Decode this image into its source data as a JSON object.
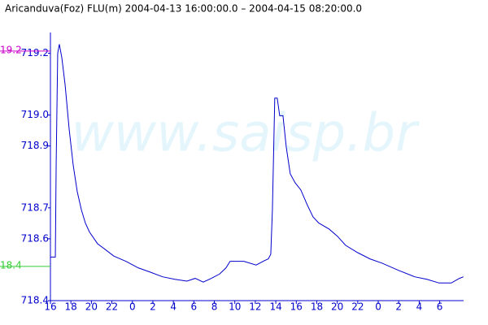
{
  "chart_data": {
    "type": "line",
    "title": "Aricanduva(Foz) FLU(m) 2004-04-13 16:00:00.0 – 2004-04-15 08:20:00.0",
    "watermark": "www.saisp.br",
    "xlim": [
      0,
      40.333
    ],
    "xticks": [
      {
        "value": 0,
        "label": "16"
      },
      {
        "value": 2,
        "label": "18"
      },
      {
        "value": 4,
        "label": "20"
      },
      {
        "value": 6,
        "label": "22"
      },
      {
        "value": 8,
        "label": "0"
      },
      {
        "value": 10,
        "label": "2"
      },
      {
        "value": 12,
        "label": "4"
      },
      {
        "value": 14,
        "label": "6"
      },
      {
        "value": 16,
        "label": "8"
      },
      {
        "value": 18,
        "label": "10"
      },
      {
        "value": 20,
        "label": "12"
      },
      {
        "value": 22,
        "label": "14"
      },
      {
        "value": 24,
        "label": "16"
      },
      {
        "value": 26,
        "label": "18"
      },
      {
        "value": 28,
        "label": "20"
      },
      {
        "value": 30,
        "label": "22"
      },
      {
        "value": 32,
        "label": "0"
      },
      {
        "value": 34,
        "label": "2"
      },
      {
        "value": 36,
        "label": "4"
      },
      {
        "value": 38,
        "label": "6"
      }
    ],
    "ylim": [
      718.4,
      719.267
    ],
    "yticks": [
      719.2,
      {
        "value": 719.0,
        "label": "719.0"
      },
      718.9,
      718.7,
      718.6,
      718.4
    ],
    "y2lim": [
      18.273,
      19.269
    ],
    "y2ticks": [
      19.2,
      18.4
    ],
    "y2tick_colors": [
      "#cc00cc",
      "#33cc33"
    ],
    "series": [
      {
        "color": "#0000cc",
        "x": [
          0,
          0.48,
          0.56,
          0.71,
          0.87,
          1.11,
          1.43,
          1.83,
          2.22,
          2.62,
          3.02,
          3.41,
          3.81,
          4.6,
          5.4,
          6.19,
          7.38,
          8.57,
          9.76,
          10.95,
          12.14,
          13.33,
          14.13,
          14.92,
          15.71,
          16.51,
          17.14,
          17.54,
          18.89,
          20.08,
          20.87,
          21.27,
          21.51,
          21.67,
          21.9,
          22.14,
          22.38,
          22.7,
          23.02,
          23.41,
          23.89,
          24.44,
          25.08,
          25.63,
          26.19,
          27.22,
          28.02,
          28.81,
          30.0,
          31.19,
          32.38,
          33.97,
          35.56,
          36.75,
          37.94,
          39.13,
          39.92,
          40.32
        ],
        "values": [
          718.541,
          718.541,
          718.839,
          719.2,
          719.229,
          719.186,
          719.099,
          718.954,
          718.839,
          718.752,
          718.694,
          718.651,
          718.622,
          718.584,
          718.564,
          718.544,
          718.527,
          718.506,
          718.492,
          718.477,
          718.469,
          718.463,
          718.472,
          718.46,
          718.472,
          718.486,
          718.506,
          718.527,
          718.527,
          718.515,
          718.529,
          718.535,
          718.55,
          718.694,
          719.055,
          719.055,
          718.998,
          718.998,
          718.897,
          718.81,
          718.781,
          718.758,
          718.709,
          718.671,
          718.651,
          718.631,
          718.608,
          718.579,
          718.555,
          718.535,
          718.521,
          718.498,
          718.477,
          718.469,
          718.457,
          718.457,
          718.472,
          718.477
        ]
      }
    ]
  }
}
